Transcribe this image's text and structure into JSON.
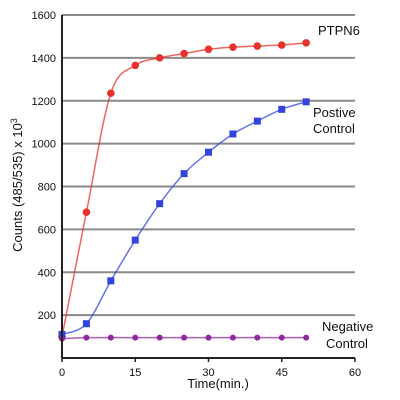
{
  "chart_data": {
    "type": "line",
    "xlabel": "Time(min.)",
    "ylabel": "Counts (485/535) x 10",
    "ylabel_superscript": "3",
    "xlim": [
      0,
      60
    ],
    "ylim": [
      0,
      1600
    ],
    "x_ticks": [
      "0",
      "15",
      "30",
      "45",
      "60"
    ],
    "y_ticks": [
      "200",
      "400",
      "600",
      "800",
      "1000",
      "1200",
      "1400",
      "1600"
    ],
    "grid": "horizontal",
    "series": [
      {
        "name": "PTPN6",
        "color": "#e8322d",
        "marker": "circle",
        "x": [
          0,
          5,
          10,
          15,
          20,
          25,
          30,
          35,
          40,
          45,
          50
        ],
        "y": [
          100,
          680,
          1235,
          1365,
          1400,
          1420,
          1440,
          1450,
          1455,
          1460,
          1470
        ]
      },
      {
        "name_lines": [
          "Postive",
          "Control"
        ],
        "color": "#3344dd",
        "marker": "square",
        "x": [
          0,
          5,
          10,
          15,
          20,
          25,
          30,
          35,
          40,
          45,
          50
        ],
        "y": [
          110,
          160,
          360,
          550,
          720,
          860,
          960,
          1045,
          1105,
          1160,
          1195
        ]
      },
      {
        "name_lines": [
          "Negative",
          "Control"
        ],
        "color": "#8e2a9e",
        "marker": "circle",
        "x": [
          0,
          5,
          10,
          15,
          20,
          25,
          30,
          35,
          40,
          45,
          50
        ],
        "y": [
          90,
          95,
          95,
          95,
          95,
          95,
          95,
          95,
          95,
          95,
          95
        ]
      }
    ]
  }
}
